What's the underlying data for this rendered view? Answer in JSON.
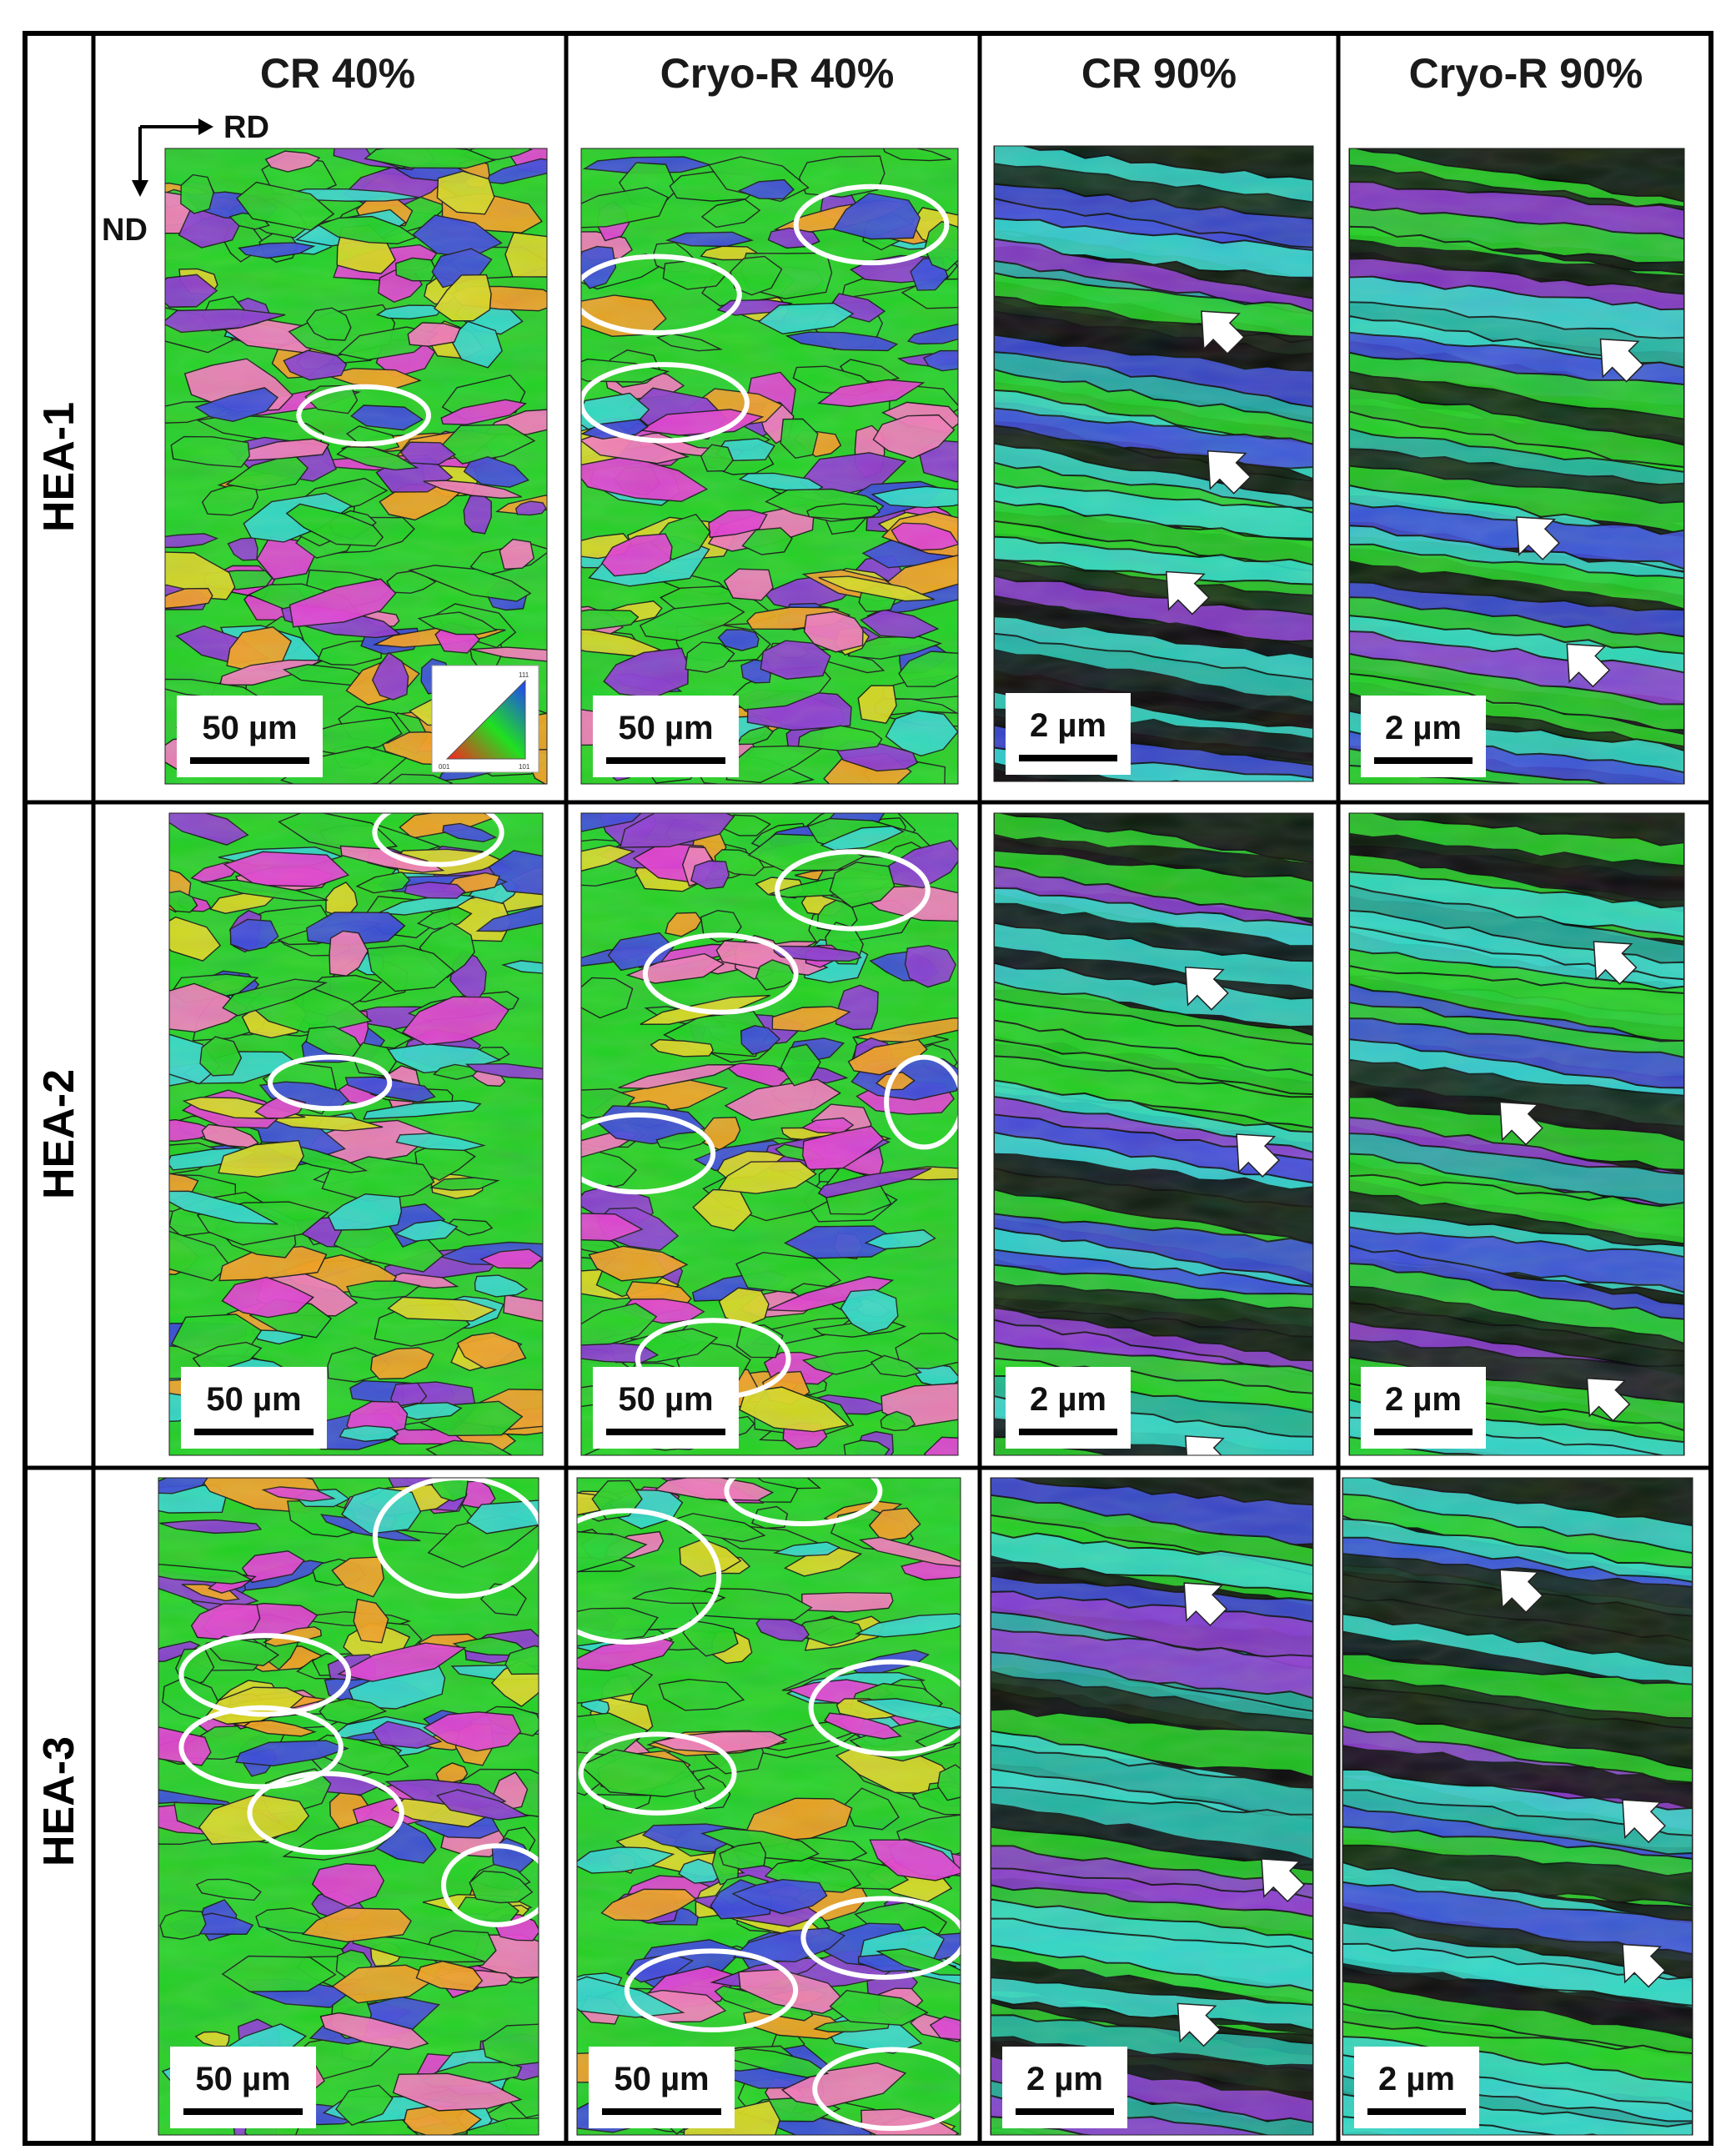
{
  "figure": {
    "column_headers": [
      "CR 40%",
      "Cryo-R 40%",
      "CR 90%",
      "Cryo-R 90%"
    ],
    "row_labels": [
      "HEA-1",
      "HEA-2",
      "HEA-3"
    ],
    "axes": {
      "horizontal": "RD",
      "vertical": "ND"
    },
    "ipf_legend": {
      "corners": [
        "111",
        "001",
        "101"
      ]
    },
    "scale_bars": [
      [
        "50 µm",
        "50 µm",
        "2 µm",
        "2 µm"
      ],
      [
        "50 µm",
        "50 µm",
        "2 µm",
        "2 µm"
      ],
      [
        "50 µm",
        "50 µm",
        "2 µm",
        "2 µm"
      ]
    ],
    "colors": {
      "green": "#22d022",
      "magenta": "#e040d0",
      "pink": "#f07ab8",
      "blue": "#3a4ad8",
      "cyan": "#30d8c8",
      "orange": "#f0a020",
      "purple": "#8a3ad0",
      "teal": "#20b0a0",
      "yellow": "#d8d820",
      "boundary": "#111111",
      "annotation": "#ffffff",
      "frame": "#000000"
    }
  }
}
